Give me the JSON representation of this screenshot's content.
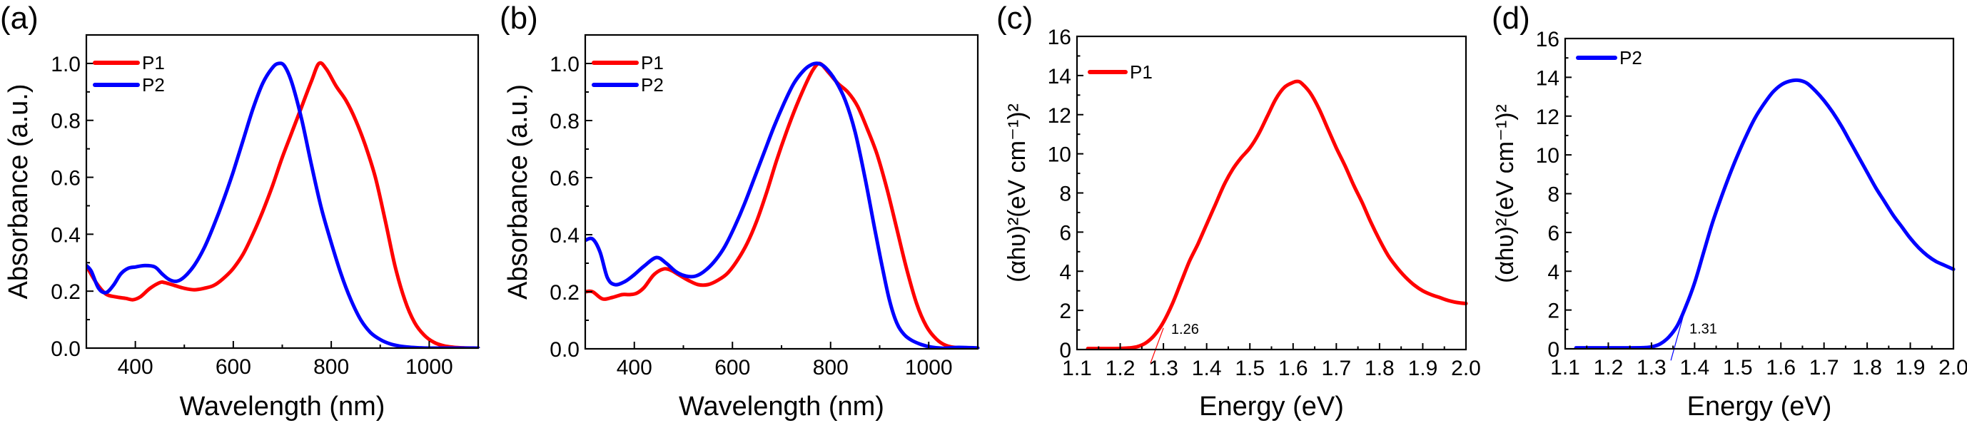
{
  "chart_data": [
    {
      "panel": "(a)",
      "type": "line",
      "xlabel": "Wavelength (nm)",
      "ylabel": "Absorbance (a.u.)",
      "xlim": [
        300,
        1100
      ],
      "ylim": [
        0,
        1.1
      ],
      "xticks": [
        400,
        600,
        800,
        1000
      ],
      "xticklabels": [
        "400",
        "600",
        "800",
        "1000"
      ],
      "xminor": [
        300,
        500,
        700,
        900,
        1100
      ],
      "yticks": [
        0.0,
        0.2,
        0.4,
        0.6,
        0.8,
        1.0
      ],
      "yticklabels": [
        "0.0",
        "0.2",
        "0.4",
        "0.6",
        "0.8",
        "1.0"
      ],
      "yminor": [
        0.1,
        0.3,
        0.5,
        0.7,
        0.9
      ],
      "legend_position": "top-left",
      "grid": false,
      "series": [
        {
          "name": "P1",
          "color": "#ff0000",
          "x": [
            300,
            320,
            340,
            360,
            380,
            395,
            410,
            430,
            450,
            460,
            480,
            500,
            520,
            540,
            560,
            580,
            600,
            620,
            640,
            660,
            680,
            700,
            720,
            740,
            760,
            775,
            790,
            810,
            830,
            850,
            870,
            890,
            910,
            930,
            950,
            970,
            990,
            1010,
            1030,
            1050,
            1070,
            1100
          ],
          "y": [
            0.29,
            0.23,
            0.19,
            0.18,
            0.175,
            0.17,
            0.18,
            0.21,
            0.23,
            0.23,
            0.22,
            0.21,
            0.205,
            0.21,
            0.22,
            0.245,
            0.28,
            0.33,
            0.4,
            0.48,
            0.57,
            0.67,
            0.76,
            0.85,
            0.94,
            1.0,
            0.98,
            0.92,
            0.87,
            0.8,
            0.71,
            0.6,
            0.45,
            0.29,
            0.17,
            0.09,
            0.045,
            0.02,
            0.008,
            0.003,
            0.001,
            0.0
          ]
        },
        {
          "name": "P2",
          "color": "#0000ff",
          "x": [
            300,
            310,
            325,
            340,
            355,
            370,
            385,
            400,
            420,
            440,
            455,
            470,
            485,
            500,
            520,
            540,
            560,
            580,
            600,
            620,
            640,
            660,
            680,
            693,
            705,
            720,
            740,
            760,
            780,
            800,
            820,
            840,
            860,
            880,
            900,
            920,
            940,
            960,
            980,
            1000,
            1050,
            1100
          ],
          "y": [
            0.29,
            0.27,
            0.21,
            0.195,
            0.22,
            0.26,
            0.28,
            0.285,
            0.29,
            0.285,
            0.26,
            0.24,
            0.235,
            0.25,
            0.29,
            0.35,
            0.43,
            0.52,
            0.62,
            0.73,
            0.84,
            0.93,
            0.985,
            1.0,
            0.99,
            0.93,
            0.8,
            0.64,
            0.49,
            0.37,
            0.26,
            0.17,
            0.1,
            0.055,
            0.03,
            0.015,
            0.007,
            0.003,
            0.001,
            0.0,
            0.0,
            0.0
          ]
        }
      ]
    },
    {
      "panel": "(b)",
      "type": "line",
      "xlabel": "Wavelength (nm)",
      "ylabel": "Absorbance (a.u.)",
      "xlim": [
        300,
        1100
      ],
      "ylim": [
        0,
        1.1
      ],
      "xticks": [
        400,
        600,
        800,
        1000
      ],
      "xticklabels": [
        "400",
        "600",
        "800",
        "1000"
      ],
      "xminor": [
        300,
        500,
        700,
        900,
        1100
      ],
      "yticks": [
        0.0,
        0.2,
        0.4,
        0.6,
        0.8,
        1.0
      ],
      "yticklabels": [
        "0.0",
        "0.2",
        "0.4",
        "0.6",
        "0.8",
        "1.0"
      ],
      "yminor": [
        0.1,
        0.3,
        0.5,
        0.7,
        0.9
      ],
      "legend_position": "top-left",
      "grid": false,
      "series": [
        {
          "name": "P1",
          "color": "#ff0000",
          "x": [
            300,
            315,
            335,
            355,
            375,
            390,
            405,
            420,
            440,
            460,
            475,
            490,
            510,
            530,
            550,
            570,
            590,
            610,
            630,
            650,
            670,
            690,
            710,
            730,
            750,
            765,
            778,
            795,
            815,
            835,
            855,
            875,
            895,
            915,
            935,
            955,
            975,
            995,
            1015,
            1035,
            1060,
            1100
          ],
          "y": [
            0.2,
            0.2,
            0.175,
            0.18,
            0.19,
            0.19,
            0.195,
            0.215,
            0.26,
            0.28,
            0.275,
            0.26,
            0.24,
            0.225,
            0.225,
            0.24,
            0.265,
            0.31,
            0.37,
            0.45,
            0.55,
            0.66,
            0.76,
            0.85,
            0.93,
            0.98,
            1.0,
            0.97,
            0.93,
            0.9,
            0.85,
            0.77,
            0.68,
            0.56,
            0.42,
            0.28,
            0.16,
            0.08,
            0.035,
            0.012,
            0.004,
            0.002
          ]
        },
        {
          "name": "P2",
          "color": "#0000ff",
          "x": [
            300,
            315,
            330,
            345,
            360,
            380,
            400,
            420,
            445,
            465,
            485,
            505,
            525,
            545,
            565,
            585,
            605,
            625,
            645,
            665,
            685,
            705,
            725,
            745,
            760,
            775,
            790,
            810,
            830,
            850,
            870,
            890,
            905,
            920,
            935,
            950,
            965,
            985,
            1005,
            1030,
            1060,
            1100
          ],
          "y": [
            0.38,
            0.385,
            0.34,
            0.25,
            0.225,
            0.235,
            0.26,
            0.29,
            0.32,
            0.3,
            0.27,
            0.255,
            0.255,
            0.275,
            0.31,
            0.36,
            0.43,
            0.51,
            0.6,
            0.69,
            0.78,
            0.86,
            0.93,
            0.975,
            0.995,
            1.0,
            0.985,
            0.94,
            0.87,
            0.76,
            0.6,
            0.42,
            0.29,
            0.17,
            0.09,
            0.05,
            0.03,
            0.015,
            0.006,
            0.002,
            0.005,
            0.003
          ]
        }
      ]
    },
    {
      "panel": "(c)",
      "type": "line",
      "xlabel": "Energy (eV)",
      "ylabel": "(αhυ)²(eV cm⁻¹)²",
      "xlim": [
        1.1,
        2.0
      ],
      "ylim": [
        0,
        16
      ],
      "xticks": [
        1.1,
        1.2,
        1.3,
        1.4,
        1.5,
        1.6,
        1.7,
        1.8,
        1.9,
        2.0
      ],
      "xticklabels": [
        "1.1",
        "1.2",
        "1.3",
        "1.4",
        "1.5",
        "1.6",
        "1.7",
        "1.8",
        "1.9",
        "2.0"
      ],
      "xminor": [
        1.15,
        1.25,
        1.35,
        1.45,
        1.55,
        1.65,
        1.75,
        1.85,
        1.95
      ],
      "yticks": [
        0,
        2,
        4,
        6,
        8,
        10,
        12,
        14,
        16
      ],
      "yticklabels": [
        "0",
        "2",
        "4",
        "6",
        "8",
        "10",
        "12",
        "14",
        "16"
      ],
      "yminor": [
        1,
        3,
        5,
        7,
        9,
        11,
        13,
        15
      ],
      "legend_position": "top-left",
      "grid": false,
      "annotation": {
        "text": "1.26",
        "x": 1.35,
        "y": 0.8
      },
      "tangent": {
        "x": [
          1.27,
          1.3
        ],
        "y": [
          -0.7,
          1.1
        ]
      },
      "series": [
        {
          "name": "P1",
          "color": "#ff0000",
          "x": [
            1.125,
            1.15,
            1.18,
            1.2,
            1.22,
            1.24,
            1.26,
            1.28,
            1.3,
            1.32,
            1.34,
            1.36,
            1.38,
            1.4,
            1.42,
            1.44,
            1.46,
            1.48,
            1.5,
            1.52,
            1.54,
            1.56,
            1.58,
            1.6,
            1.61,
            1.62,
            1.64,
            1.66,
            1.68,
            1.7,
            1.72,
            1.74,
            1.76,
            1.78,
            1.8,
            1.82,
            1.84,
            1.86,
            1.88,
            1.9,
            1.92,
            1.94,
            1.96,
            1.98,
            2.0
          ],
          "y": [
            0.05,
            0.05,
            0.05,
            0.06,
            0.08,
            0.15,
            0.35,
            0.75,
            1.4,
            2.3,
            3.4,
            4.5,
            5.4,
            6.4,
            7.4,
            8.4,
            9.2,
            9.8,
            10.3,
            11.0,
            11.9,
            12.8,
            13.4,
            13.65,
            13.7,
            13.6,
            13.1,
            12.3,
            11.3,
            10.3,
            9.4,
            8.4,
            7.5,
            6.5,
            5.6,
            4.8,
            4.2,
            3.7,
            3.3,
            3.0,
            2.8,
            2.65,
            2.5,
            2.4,
            2.35
          ]
        }
      ]
    },
    {
      "panel": "(d)",
      "type": "line",
      "xlabel": "Energy (eV)",
      "ylabel": "(αhυ)²(eV cm⁻¹)²",
      "xlim": [
        1.1,
        2.0
      ],
      "ylim": [
        0,
        16
      ],
      "xticks": [
        1.1,
        1.2,
        1.3,
        1.4,
        1.5,
        1.6,
        1.7,
        1.8,
        1.9,
        2.0
      ],
      "xticklabels": [
        "1.1",
        "1.2",
        "1.3",
        "1.4",
        "1.5",
        "1.6",
        "1.7",
        "1.8",
        "1.9",
        "2.0"
      ],
      "xminor": [
        1.15,
        1.25,
        1.35,
        1.45,
        1.55,
        1.65,
        1.75,
        1.85,
        1.95
      ],
      "yticks": [
        0,
        2,
        4,
        6,
        8,
        10,
        12,
        14,
        16
      ],
      "yticklabels": [
        "0",
        "2",
        "4",
        "6",
        "8",
        "10",
        "12",
        "14",
        "16"
      ],
      "yminor": [
        1,
        3,
        5,
        7,
        9,
        11,
        13,
        15
      ],
      "legend_position": "top-left",
      "grid": false,
      "annotation": {
        "text": "1.31",
        "x": 1.42,
        "y": 0.8
      },
      "tangent": {
        "x": [
          1.345,
          1.375
        ],
        "y": [
          -0.6,
          1.8
        ]
      },
      "series": [
        {
          "name": "P2",
          "color": "#0000ff",
          "x": [
            1.125,
            1.15,
            1.2,
            1.25,
            1.28,
            1.3,
            1.32,
            1.34,
            1.36,
            1.38,
            1.4,
            1.42,
            1.44,
            1.46,
            1.48,
            1.5,
            1.52,
            1.54,
            1.56,
            1.58,
            1.6,
            1.62,
            1.64,
            1.66,
            1.68,
            1.7,
            1.72,
            1.74,
            1.76,
            1.78,
            1.8,
            1.82,
            1.84,
            1.86,
            1.88,
            1.9,
            1.92,
            1.94,
            1.96,
            1.98,
            2.0
          ],
          "y": [
            0.05,
            0.05,
            0.05,
            0.05,
            0.06,
            0.1,
            0.25,
            0.6,
            1.2,
            2.2,
            3.4,
            4.9,
            6.4,
            7.7,
            8.9,
            10.0,
            11.0,
            11.9,
            12.6,
            13.2,
            13.6,
            13.8,
            13.85,
            13.7,
            13.3,
            12.8,
            12.2,
            11.5,
            10.7,
            9.9,
            9.1,
            8.3,
            7.6,
            6.9,
            6.3,
            5.7,
            5.2,
            4.8,
            4.5,
            4.3,
            4.1
          ]
        }
      ]
    }
  ]
}
